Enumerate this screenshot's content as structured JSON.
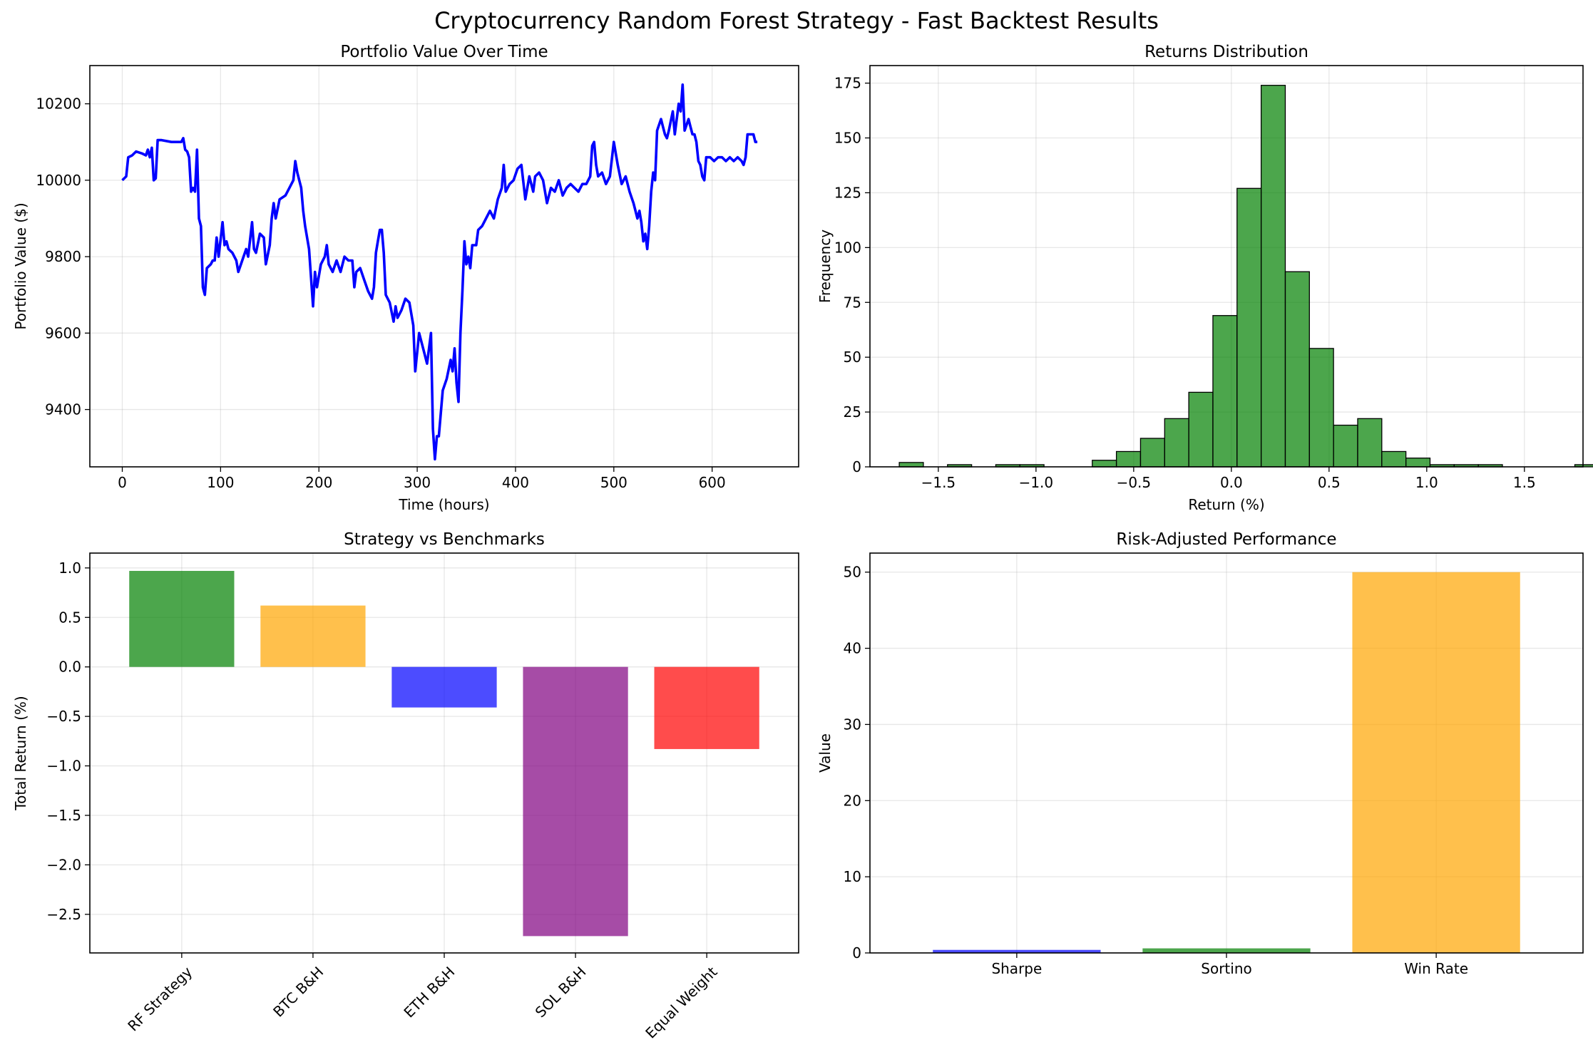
{
  "figure": {
    "suptitle": "Cryptocurrency Random Forest Strategy - Fast Backtest Results"
  },
  "chart_data": [
    {
      "type": "line",
      "title": "Portfolio Value Over Time",
      "xlabel": "Time (hours)",
      "ylabel": "Portfolio Value ($)",
      "xlim": [
        -33,
        688
      ],
      "ylim": [
        9250,
        10300
      ],
      "xticks": [
        0,
        100,
        200,
        300,
        400,
        500,
        600
      ],
      "yticks": [
        9400,
        9600,
        9800,
        10000,
        10200
      ],
      "grid": true,
      "color": "#0000ff",
      "series": [
        {
          "points": [
            [
              0,
              10000
            ],
            [
              4,
              10010
            ],
            [
              6,
              10060
            ],
            [
              10,
              10065
            ],
            [
              14,
              10075
            ],
            [
              20,
              10070
            ],
            [
              24,
              10065
            ],
            [
              26,
              10080
            ],
            [
              28,
              10060
            ],
            [
              30,
              10085
            ],
            [
              32,
              10000
            ],
            [
              34,
              10005
            ],
            [
              36,
              10105
            ],
            [
              40,
              10105
            ],
            [
              50,
              10100
            ],
            [
              60,
              10100
            ],
            [
              62,
              10110
            ],
            [
              64,
              10080
            ],
            [
              66,
              10075
            ],
            [
              68,
              10060
            ],
            [
              70,
              9970
            ],
            [
              72,
              9980
            ],
            [
              74,
              9970
            ],
            [
              76,
              10080
            ],
            [
              78,
              9900
            ],
            [
              80,
              9880
            ],
            [
              82,
              9720
            ],
            [
              84,
              9700
            ],
            [
              86,
              9770
            ],
            [
              90,
              9780
            ],
            [
              92,
              9790
            ],
            [
              94,
              9790
            ],
            [
              96,
              9850
            ],
            [
              98,
              9800
            ],
            [
              102,
              9890
            ],
            [
              104,
              9830
            ],
            [
              106,
              9840
            ],
            [
              108,
              9820
            ],
            [
              112,
              9810
            ],
            [
              116,
              9790
            ],
            [
              118,
              9760
            ],
            [
              122,
              9790
            ],
            [
              126,
              9820
            ],
            [
              128,
              9800
            ],
            [
              132,
              9890
            ],
            [
              134,
              9820
            ],
            [
              136,
              9810
            ],
            [
              140,
              9860
            ],
            [
              144,
              9850
            ],
            [
              146,
              9780
            ],
            [
              150,
              9830
            ],
            [
              152,
              9900
            ],
            [
              154,
              9940
            ],
            [
              156,
              9900
            ],
            [
              160,
              9950
            ],
            [
              166,
              9960
            ],
            [
              170,
              9980
            ],
            [
              174,
              10000
            ],
            [
              176,
              10050
            ],
            [
              178,
              10020
            ],
            [
              182,
              9980
            ],
            [
              184,
              9920
            ],
            [
              186,
              9880
            ],
            [
              190,
              9820
            ],
            [
              194,
              9670
            ],
            [
              196,
              9760
            ],
            [
              198,
              9720
            ],
            [
              202,
              9780
            ],
            [
              206,
              9800
            ],
            [
              208,
              9830
            ],
            [
              210,
              9780
            ],
            [
              214,
              9760
            ],
            [
              218,
              9790
            ],
            [
              222,
              9760
            ],
            [
              226,
              9800
            ],
            [
              230,
              9790
            ],
            [
              234,
              9790
            ],
            [
              236,
              9720
            ],
            [
              238,
              9760
            ],
            [
              242,
              9770
            ],
            [
              246,
              9740
            ],
            [
              250,
              9710
            ],
            [
              254,
              9690
            ],
            [
              256,
              9720
            ],
            [
              258,
              9810
            ],
            [
              260,
              9840
            ],
            [
              262,
              9870
            ],
            [
              264,
              9870
            ],
            [
              266,
              9810
            ],
            [
              268,
              9700
            ],
            [
              272,
              9680
            ],
            [
              276,
              9630
            ],
            [
              278,
              9670
            ],
            [
              280,
              9640
            ],
            [
              284,
              9660
            ],
            [
              288,
              9690
            ],
            [
              292,
              9680
            ],
            [
              296,
              9620
            ],
            [
              298,
              9500
            ],
            [
              302,
              9600
            ],
            [
              306,
              9560
            ],
            [
              310,
              9520
            ],
            [
              314,
              9600
            ],
            [
              316,
              9350
            ],
            [
              318,
              9270
            ],
            [
              320,
              9330
            ],
            [
              322,
              9330
            ],
            [
              326,
              9450
            ],
            [
              330,
              9480
            ],
            [
              334,
              9530
            ],
            [
              336,
              9500
            ],
            [
              338,
              9560
            ],
            [
              340,
              9470
            ],
            [
              342,
              9420
            ],
            [
              344,
              9600
            ],
            [
              346,
              9710
            ],
            [
              348,
              9840
            ],
            [
              350,
              9780
            ],
            [
              352,
              9800
            ],
            [
              354,
              9770
            ],
            [
              356,
              9830
            ],
            [
              360,
              9830
            ],
            [
              362,
              9870
            ],
            [
              366,
              9880
            ],
            [
              370,
              9900
            ],
            [
              374,
              9920
            ],
            [
              378,
              9900
            ],
            [
              382,
              9950
            ],
            [
              386,
              9980
            ],
            [
              388,
              10040
            ],
            [
              390,
              9970
            ],
            [
              394,
              9990
            ],
            [
              398,
              10000
            ],
            [
              402,
              10030
            ],
            [
              406,
              10040
            ],
            [
              410,
              9950
            ],
            [
              414,
              10010
            ],
            [
              418,
              9970
            ],
            [
              420,
              10010
            ],
            [
              424,
              10020
            ],
            [
              428,
              10000
            ],
            [
              432,
              9940
            ],
            [
              436,
              9980
            ],
            [
              440,
              9970
            ],
            [
              444,
              10000
            ],
            [
              448,
              9960
            ],
            [
              452,
              9980
            ],
            [
              456,
              9990
            ],
            [
              460,
              9980
            ],
            [
              464,
              9970
            ],
            [
              468,
              9990
            ],
            [
              472,
              9990
            ],
            [
              476,
              10010
            ],
            [
              478,
              10090
            ],
            [
              480,
              10100
            ],
            [
              482,
              10040
            ],
            [
              484,
              10010
            ],
            [
              488,
              10020
            ],
            [
              492,
              9990
            ],
            [
              496,
              10010
            ],
            [
              500,
              10100
            ],
            [
              504,
              10040
            ],
            [
              508,
              9990
            ],
            [
              512,
              10010
            ],
            [
              516,
              9970
            ],
            [
              520,
              9940
            ],
            [
              524,
              9900
            ],
            [
              526,
              9920
            ],
            [
              528,
              9890
            ],
            [
              530,
              9840
            ],
            [
              532,
              9860
            ],
            [
              534,
              9820
            ],
            [
              536,
              9880
            ],
            [
              538,
              9970
            ],
            [
              540,
              10020
            ],
            [
              542,
              10000
            ],
            [
              544,
              10130
            ],
            [
              548,
              10160
            ],
            [
              550,
              10140
            ],
            [
              552,
              10120
            ],
            [
              554,
              10110
            ],
            [
              556,
              10130
            ],
            [
              560,
              10180
            ],
            [
              562,
              10120
            ],
            [
              566,
              10200
            ],
            [
              568,
              10180
            ],
            [
              570,
              10250
            ],
            [
              572,
              10130
            ],
            [
              576,
              10160
            ],
            [
              578,
              10140
            ],
            [
              580,
              10120
            ],
            [
              582,
              10120
            ],
            [
              584,
              10100
            ],
            [
              586,
              10050
            ],
            [
              588,
              10040
            ],
            [
              590,
              10010
            ],
            [
              592,
              10000
            ],
            [
              594,
              10060
            ],
            [
              598,
              10060
            ],
            [
              602,
              10050
            ],
            [
              606,
              10060
            ],
            [
              610,
              10060
            ],
            [
              614,
              10050
            ],
            [
              618,
              10060
            ],
            [
              622,
              10050
            ],
            [
              626,
              10060
            ],
            [
              630,
              10050
            ],
            [
              632,
              10040
            ],
            [
              634,
              10060
            ],
            [
              636,
              10120
            ],
            [
              640,
              10120
            ],
            [
              642,
              10120
            ],
            [
              644,
              10100
            ],
            [
              646,
              10100
            ]
          ]
        }
      ]
    },
    {
      "type": "bar",
      "subtype": "histogram",
      "title": "Returns Distribution",
      "xlabel": "Return (%)",
      "ylabel": "Frequency",
      "xlim": [
        -1.85,
        1.8
      ],
      "ylim": [
        0,
        183
      ],
      "xticks": [
        -1.5,
        -1.0,
        -0.5,
        0.0,
        0.5,
        1.0,
        1.5
      ],
      "xtick_labels": [
        "−1.5",
        "−1.0",
        "−0.5",
        "0.0",
        "0.5",
        "1.0",
        "1.5"
      ],
      "yticks": [
        0,
        25,
        50,
        75,
        100,
        125,
        150,
        175
      ],
      "grid": true,
      "color": "#008000",
      "bin_start": -1.7,
      "bin_width": 0.1235,
      "counts": [
        2,
        0,
        1,
        0,
        1,
        1,
        0,
        0,
        3,
        7,
        13,
        22,
        34,
        69,
        127,
        174,
        89,
        54,
        19,
        22,
        7,
        4,
        1,
        1,
        1,
        0,
        0,
        0,
        1,
        2
      ]
    },
    {
      "type": "bar",
      "title": "Strategy vs Benchmarks",
      "xlabel": "",
      "ylabel": "Total Return (%)",
      "ylim": [
        -2.89,
        1.15
      ],
      "yticks": [
        -2.5,
        -2.0,
        -1.5,
        -1.0,
        -0.5,
        0.0,
        0.5,
        1.0
      ],
      "ytick_labels": [
        "−2.5",
        "−2.0",
        "−1.5",
        "−1.0",
        "−0.5",
        "0.0",
        "0.5",
        "1.0"
      ],
      "grid": true,
      "categories": [
        "RF Strategy",
        "BTC B&H",
        "ETH B&H",
        "SOL B&H",
        "Equal Weight"
      ],
      "values": [
        0.97,
        0.62,
        -0.41,
        -2.72,
        -0.83
      ],
      "colors": [
        "#008000",
        "#ffa500",
        "#0000ff",
        "#800080",
        "#ff0000"
      ]
    },
    {
      "type": "bar",
      "title": "Risk-Adjusted Performance",
      "xlabel": "",
      "ylabel": "Value",
      "ylim": [
        0,
        52.5
      ],
      "yticks": [
        0,
        10,
        20,
        30,
        40,
        50
      ],
      "grid": true,
      "categories": [
        "Sharpe",
        "Sortino",
        "Win Rate"
      ],
      "values": [
        0.4,
        0.6,
        50.0
      ],
      "colors": [
        "#0000ff",
        "#008000",
        "#ffa500"
      ]
    }
  ]
}
